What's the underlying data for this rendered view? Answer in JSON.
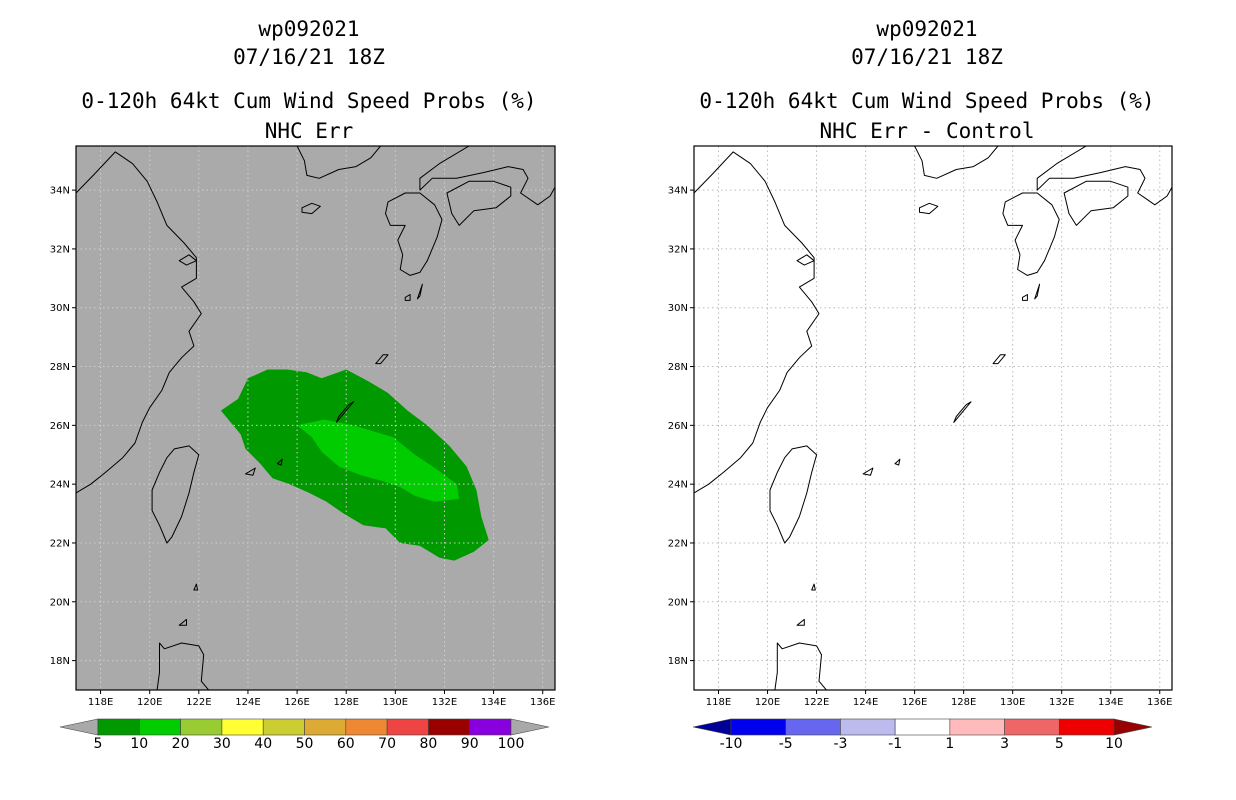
{
  "chart_data": [
    {
      "type": "heatmap",
      "title_lines": [
        "wp092021",
        "07/16/21 18Z",
        "0-120h 64kt Cum Wind Speed Probs (%)",
        "NHC Err"
      ],
      "x_ticks": [
        "118E",
        "120E",
        "122E",
        "124E",
        "126E",
        "128E",
        "130E",
        "132E",
        "134E",
        "136E"
      ],
      "y_ticks": [
        "34N",
        "32N",
        "30N",
        "28N",
        "26N",
        "24N",
        "22N",
        "20N",
        "18N"
      ],
      "xlim": [
        117,
        136.5
      ],
      "ylim": [
        17,
        35.5
      ],
      "background_color": "#aaaaaa",
      "colorbar": {
        "colors": [
          "#a9a9a9",
          "#009900",
          "#00cc00",
          "#99cc33",
          "#ffff33",
          "#cccc33",
          "#ddaa33",
          "#ee8833",
          "#ee4444",
          "#990000",
          "#8800dd",
          "#a9a9a9"
        ],
        "labels": [
          "5",
          "10",
          "20",
          "30",
          "40",
          "50",
          "60",
          "70",
          "80",
          "90",
          "100"
        ]
      },
      "regions": [
        {
          "level": "5-10",
          "color": "#009900",
          "lonlat": [
            [
              124.8,
              27.9
            ],
            [
              125.6,
              27.9
            ],
            [
              126.4,
              27.8
            ],
            [
              127.0,
              27.6
            ],
            [
              128.0,
              27.9
            ],
            [
              128.9,
              27.5
            ],
            [
              129.7,
              27.1
            ],
            [
              130.5,
              26.5
            ],
            [
              131.3,
              26.0
            ],
            [
              132.2,
              25.3
            ],
            [
              132.9,
              24.6
            ],
            [
              133.3,
              23.8
            ],
            [
              133.5,
              22.9
            ],
            [
              133.8,
              22.1
            ],
            [
              133.2,
              21.7
            ],
            [
              132.4,
              21.4
            ],
            [
              131.8,
              21.5
            ],
            [
              131.0,
              21.9
            ],
            [
              130.2,
              22.0
            ],
            [
              129.6,
              22.5
            ],
            [
              128.7,
              22.6
            ],
            [
              127.9,
              23.0
            ],
            [
              127.2,
              23.4
            ],
            [
              126.5,
              23.7
            ],
            [
              125.7,
              24.0
            ],
            [
              125.0,
              24.2
            ],
            [
              124.5,
              24.7
            ],
            [
              123.9,
              25.2
            ],
            [
              123.7,
              25.7
            ],
            [
              122.9,
              26.5
            ],
            [
              123.6,
              26.9
            ],
            [
              124.0,
              27.6
            ]
          ]
        },
        {
          "level": "10-20",
          "color": "#00cc00",
          "lonlat": [
            [
              126.0,
              26.0
            ],
            [
              127.1,
              26.2
            ],
            [
              128.3,
              26.0
            ],
            [
              129.1,
              25.8
            ],
            [
              129.9,
              25.6
            ],
            [
              130.8,
              25.0
            ],
            [
              131.7,
              24.5
            ],
            [
              132.5,
              24.0
            ],
            [
              132.6,
              23.5
            ],
            [
              131.6,
              23.4
            ],
            [
              130.8,
              23.6
            ],
            [
              130.2,
              23.9
            ],
            [
              129.5,
              24.1
            ],
            [
              128.6,
              24.3
            ],
            [
              127.7,
              24.6
            ],
            [
              127.0,
              25.1
            ],
            [
              126.6,
              25.6
            ]
          ]
        }
      ]
    },
    {
      "type": "heatmap",
      "title_lines": [
        "wp092021",
        "07/16/21 18Z",
        "0-120h 64kt Cum Wind Speed Probs (%)",
        "NHC Err - Control"
      ],
      "x_ticks": [
        "118E",
        "120E",
        "122E",
        "124E",
        "126E",
        "128E",
        "130E",
        "132E",
        "134E",
        "136E"
      ],
      "y_ticks": [
        "34N",
        "32N",
        "30N",
        "28N",
        "26N",
        "24N",
        "22N",
        "20N",
        "18N"
      ],
      "xlim": [
        117,
        136.5
      ],
      "ylim": [
        17,
        35.5
      ],
      "background_color": "#ffffff",
      "grid": true,
      "colorbar": {
        "colors": [
          "#000099",
          "#0000ee",
          "#6666ee",
          "#bbbbee",
          "#ffffff",
          "#ffbbbb",
          "#ee6666",
          "#ee0000",
          "#990000"
        ],
        "labels": [
          "-10",
          "-5",
          "-3",
          "-1",
          "1",
          "3",
          "5",
          "10"
        ]
      },
      "regions": []
    }
  ]
}
